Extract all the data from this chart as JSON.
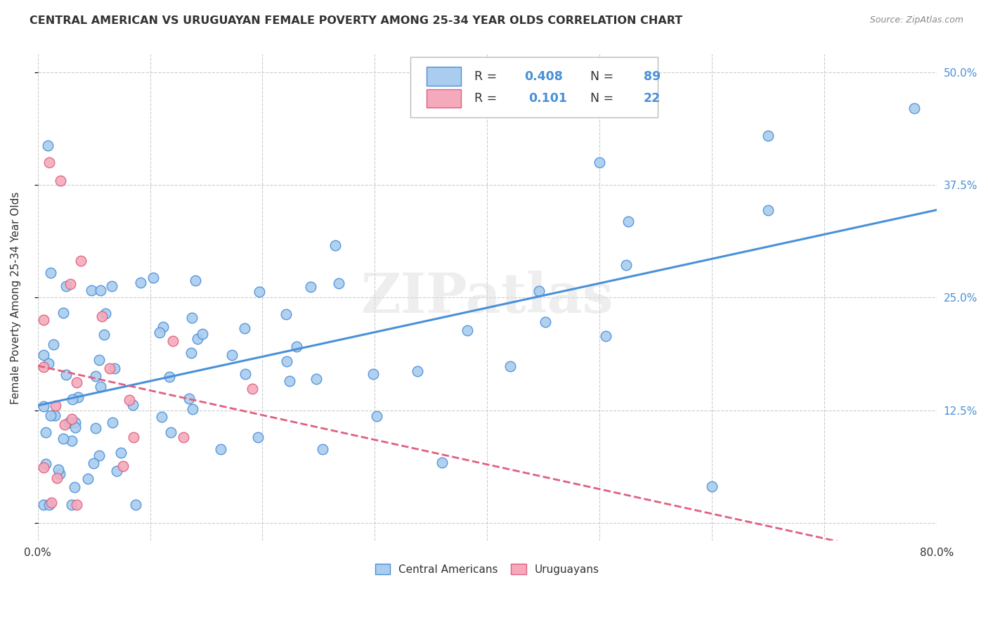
{
  "title": "CENTRAL AMERICAN VS URUGUAYAN FEMALE POVERTY AMONG 25-34 YEAR OLDS CORRELATION CHART",
  "source": "Source: ZipAtlas.com",
  "ylabel": "Female Poverty Among 25-34 Year Olds",
  "xlim": [
    0.0,
    0.8
  ],
  "ylim": [
    -0.02,
    0.52
  ],
  "xticks": [
    0.0,
    0.1,
    0.2,
    0.3,
    0.4,
    0.5,
    0.6,
    0.7,
    0.8
  ],
  "xticklabels": [
    "0.0%",
    "",
    "",
    "",
    "",
    "",
    "",
    "",
    "80.0%"
  ],
  "yticks": [
    0.0,
    0.125,
    0.25,
    0.375,
    0.5
  ],
  "yticklabels": [
    "",
    "12.5%",
    "25.0%",
    "37.5%",
    "50.0%"
  ],
  "background_color": "#ffffff",
  "grid_color": "#cccccc",
  "blue_color": "#aaccee",
  "pink_color": "#f4aabb",
  "blue_line_color": "#4a90d9",
  "pink_line_color": "#e06080",
  "R_blue": 0.408,
  "N_blue": 89,
  "R_pink": 0.101,
  "N_pink": 22,
  "watermark": "ZIPatlas"
}
